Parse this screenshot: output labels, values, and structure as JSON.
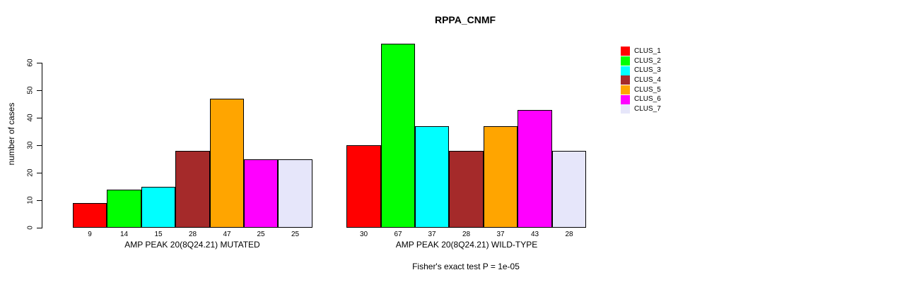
{
  "title": "RPPA_CNMF",
  "footer": "Fisher's exact test P = 1e-05",
  "chart_data": {
    "type": "bar",
    "title": "RPPA_CNMF",
    "xlabel": "",
    "ylabel": "number of cases",
    "ylim": [
      0,
      60
    ],
    "yticks": [
      0,
      10,
      20,
      30,
      40,
      50,
      60
    ],
    "grid": false,
    "legend_position": "right",
    "bar_borders": "#000000",
    "clusters": [
      {
        "name": "CLUS_1",
        "color": "#FF0000"
      },
      {
        "name": "CLUS_2",
        "color": "#00FF00"
      },
      {
        "name": "CLUS_3",
        "color": "#00FFFF"
      },
      {
        "name": "CLUS_4",
        "color": "#A52A2A"
      },
      {
        "name": "CLUS_5",
        "color": "#FFA500"
      },
      {
        "name": "CLUS_6",
        "color": "#FF00FF"
      },
      {
        "name": "CLUS_7",
        "color": "#E6E6FA"
      }
    ],
    "groups": [
      {
        "label": "AMP PEAK 20(8Q24.21) MUTATED",
        "values": [
          9,
          14,
          15,
          28,
          47,
          25,
          25
        ]
      },
      {
        "label": "AMP PEAK 20(8Q24.21) WILD-TYPE",
        "values": [
          30,
          67,
          37,
          28,
          37,
          43,
          28
        ]
      }
    ],
    "annotation": "Fisher's exact test P = 1e-05"
  }
}
